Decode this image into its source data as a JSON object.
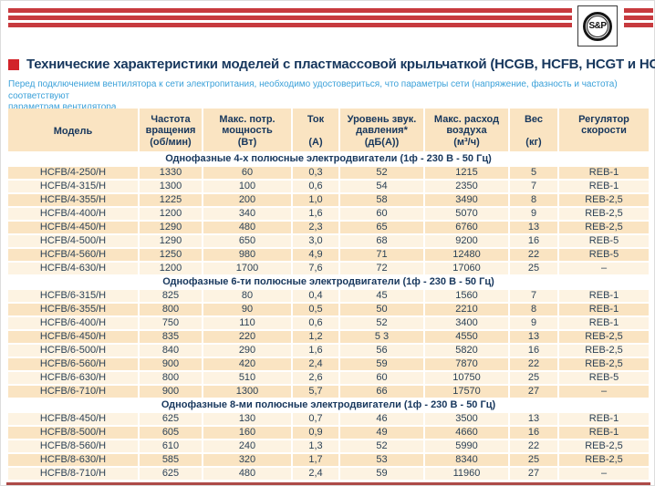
{
  "brand": {
    "logo_text": "S&P"
  },
  "page": {
    "title": "Технические характеристики моделей с пластмассовой крыльчаткой (HCGB, HCFB, HCGT и HCFT)",
    "intro_lines": [
      "Перед подключением вентилятора к сети электропитания, необходимо удостовериться, что параметры сети (напряжение, фазность и частота) соответствуют",
      "параметрам вентилятора."
    ]
  },
  "colors": {
    "accent_red": "#c73a3e",
    "bullet_red": "#d2232a",
    "navy": "#17375d",
    "text": "#2c4257",
    "intro_blue": "#3ba1d9",
    "cream": "#fae4c2",
    "cream_light": "#fdf3e2",
    "maroon_line": "#ad4a47"
  },
  "table": {
    "columns": [
      {
        "key": "model",
        "label_lines": [
          "Модель"
        ],
        "unit": ""
      },
      {
        "key": "rpm",
        "label_lines": [
          "Частота",
          "вращения"
        ],
        "unit": "(об/мин)"
      },
      {
        "key": "power",
        "label_lines": [
          "Макс. потр.",
          "мощность"
        ],
        "unit": "(Вт)"
      },
      {
        "key": "current",
        "label_lines": [
          "Ток"
        ],
        "unit": "(А)"
      },
      {
        "key": "noise",
        "label_lines": [
          "Уровень звук.",
          "давления*"
        ],
        "unit": "(дБ(А))"
      },
      {
        "key": "airflow",
        "label_lines": [
          "Макс. расход",
          "воздуха"
        ],
        "unit": "(м³/ч)"
      },
      {
        "key": "weight",
        "label_lines": [
          "Вес"
        ],
        "unit": "(кг)"
      },
      {
        "key": "regulator",
        "label_lines": [
          "Регулятор",
          "скорости"
        ],
        "unit": ""
      }
    ],
    "sections": [
      {
        "title": "Однофазные 4-х полюсные электродвигатели (1ф - 230 В - 50 Гц)",
        "first_row_shaded": true,
        "rows": [
          [
            "HCFB/4-250/H",
            "1330",
            "60",
            "0,3",
            "52",
            "1215",
            "5",
            "REB-1"
          ],
          [
            "HCFB/4-315/H",
            "1300",
            "100",
            "0,6",
            "54",
            "2350",
            "7",
            "REB-1"
          ],
          [
            "HCFB/4-355/H",
            "1225",
            "200",
            "1,0",
            "58",
            "3490",
            "8",
            "REB-2,5"
          ],
          [
            "HCFB/4-400/H",
            "1200",
            "340",
            "1,6",
            "60",
            "5070",
            "9",
            "REB-2,5"
          ],
          [
            "HCFB/4-450/H",
            "1290",
            "480",
            "2,3",
            "65",
            "6760",
            "13",
            "REB-2,5"
          ],
          [
            "HCFB/4-500/H",
            "1290",
            "650",
            "3,0",
            "68",
            "9200",
            "16",
            "REB-5"
          ],
          [
            "HCFB/4-560/H",
            "1250",
            "980",
            "4,9",
            "71",
            "12480",
            "22",
            "REB-5"
          ],
          [
            "HCFB/4-630/H",
            "1200",
            "1700",
            "7,6",
            "72",
            "17060",
            "25",
            "–"
          ]
        ]
      },
      {
        "title": "Однофазные 6-ти полюсные электродвигатели (1ф - 230 В - 50 Гц)",
        "first_row_shaded": false,
        "rows": [
          [
            "HCFB/6-315/H",
            "825",
            "80",
            "0,4",
            "45",
            "1560",
            "7",
            "REB-1"
          ],
          [
            "HCFB/6-355/H",
            "800",
            "90",
            "0,5",
            "50",
            "2210",
            "8",
            "REB-1"
          ],
          [
            "HCFB/6-400/H",
            "750",
            "110",
            "0,6",
            "52",
            "3400",
            "9",
            "REB-1"
          ],
          [
            "HCFB/6-450/H",
            "835",
            "220",
            "1,2",
            "5 3",
            "4550",
            "13",
            "REB-2,5"
          ],
          [
            "HCFB/6-500/H",
            "840",
            "290",
            "1,6",
            "56",
            "5820",
            "16",
            "REB-2,5"
          ],
          [
            "HCFB/6-560/H",
            "900",
            "420",
            "2,4",
            "59",
            "7870",
            "22",
            "REB-2,5"
          ],
          [
            "HCFB/6-630/H",
            "800",
            "510",
            "2,6",
            "60",
            "10750",
            "25",
            "REB-5"
          ],
          [
            "HCFB/6-710/H",
            "900",
            "1300",
            "5,7",
            "66",
            "17570",
            "27",
            "–"
          ]
        ]
      },
      {
        "title": "Однофазные 8-ми полюсные электродвигатели (1ф - 230 В - 50 Гц)",
        "first_row_shaded": false,
        "rows": [
          [
            "HCFB/8-450/H",
            "625",
            "130",
            "0,7",
            "46",
            "3500",
            "13",
            "REB-1"
          ],
          [
            "HCFB/8-500/H",
            "605",
            "160",
            "0,9",
            "49",
            "4660",
            "16",
            "REB-1"
          ],
          [
            "HCFB/8-560/H",
            "610",
            "240",
            "1,3",
            "52",
            "5990",
            "22",
            "REB-2,5"
          ],
          [
            "HCFB/8-630/H",
            "585",
            "320",
            "1,7",
            "53",
            "8340",
            "25",
            "REB-2,5"
          ],
          [
            "HCFB/8-710/H",
            "625",
            "480",
            "2,4",
            "59",
            "11960",
            "27",
            "–"
          ]
        ]
      }
    ]
  }
}
